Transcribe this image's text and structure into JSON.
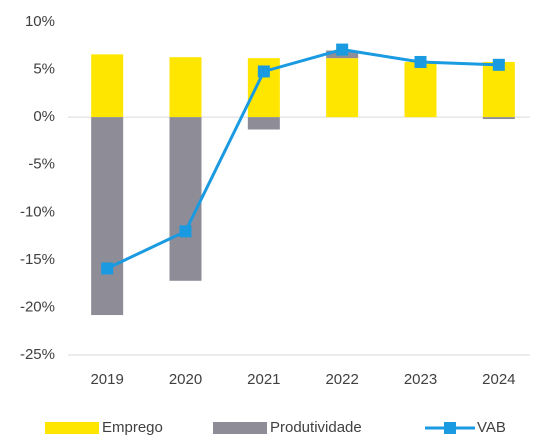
{
  "chart_data": {
    "type": "bar-line",
    "categories": [
      "2019",
      "2020",
      "2021",
      "2022",
      "2023",
      "2024"
    ],
    "series": [
      {
        "name": "Emprego",
        "type": "bar",
        "color": "#ffe600",
        "values": [
          6.6,
          6.3,
          6.2,
          6.2,
          5.8,
          5.8
        ]
      },
      {
        "name": "Produtividade",
        "type": "bar",
        "color": "#8e8c96",
        "values": [
          -20.8,
          -17.2,
          -1.3,
          0.8,
          0,
          -0.2
        ]
      },
      {
        "name": "VAB",
        "type": "line",
        "color": "#1a9ae0",
        "values": [
          -15.9,
          -12.0,
          4.8,
          7.1,
          5.8,
          5.5
        ]
      }
    ],
    "ylim": [
      -25,
      10
    ],
    "yticks": [
      {
        "value": -25,
        "label": "-25%"
      },
      {
        "value": -20,
        "label": "-20%"
      },
      {
        "value": -15,
        "label": "-15%"
      },
      {
        "value": -10,
        "label": "-10%"
      },
      {
        "value": -5,
        "label": "-5%"
      },
      {
        "value": 0,
        "label": "0%"
      },
      {
        "value": 5,
        "label": "5%"
      },
      {
        "value": 10,
        "label": "10%"
      }
    ],
    "legend": "bottom"
  }
}
